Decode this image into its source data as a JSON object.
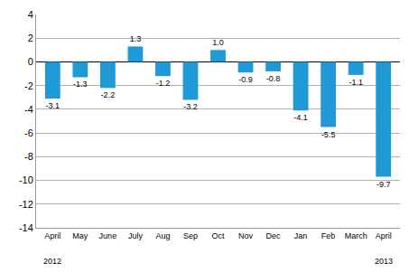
{
  "chart_data": {
    "type": "bar",
    "categories": [
      "April",
      "May",
      "June",
      "July",
      "Aug",
      "Sep",
      "Oct",
      "Nov",
      "Dec",
      "Jan",
      "Feb",
      "March",
      "April"
    ],
    "values": [
      -3.1,
      -1.3,
      -2.2,
      1.3,
      -1.2,
      -3.2,
      1.0,
      -0.9,
      -0.8,
      -4.1,
      -5.5,
      -1.1,
      -9.7
    ],
    "value_labels": [
      "-3.1",
      "-1.3",
      "-2.2",
      "1.3",
      "-1.2",
      "-3.2",
      "1.0",
      "-0.9",
      "-0.8",
      "-4.1",
      "-5.5",
      "-1.1",
      "-9.7"
    ],
    "data_labels": true,
    "color": "#1f9ad6",
    "ylim": [
      -14,
      4
    ],
    "yticks": [
      -14,
      -12,
      -10,
      -8,
      -6,
      -4,
      -2,
      0,
      2,
      4
    ],
    "grid": true,
    "annotations": [
      {
        "text": "2012",
        "category": 0
      },
      {
        "text": "2013",
        "category": 12
      }
    ]
  }
}
